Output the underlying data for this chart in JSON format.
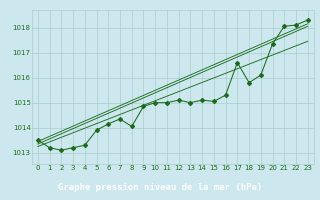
{
  "xlabel": "Graphe pression niveau de la mer (hPa)",
  "bg_color": "#cce8ee",
  "grid_color": "#aacccc",
  "line_color": "#1a6b1a",
  "text_color": "#1a6b1a",
  "xlabel_bg": "#2a6b4a",
  "xlabel_fg": "#ffffff",
  "x_values": [
    0,
    1,
    2,
    3,
    4,
    5,
    6,
    7,
    8,
    9,
    10,
    11,
    12,
    13,
    14,
    15,
    16,
    17,
    18,
    19,
    20,
    21,
    22,
    23
  ],
  "y_measured": [
    1013.5,
    1013.2,
    1013.1,
    1013.2,
    1013.3,
    1013.9,
    1014.15,
    1014.35,
    1014.05,
    1014.85,
    1015.0,
    1015.0,
    1015.1,
    1015.0,
    1015.1,
    1015.05,
    1015.3,
    1016.6,
    1015.8,
    1016.1,
    1017.35,
    1018.05,
    1018.1,
    1018.3
  ],
  "trend_lines": [
    {
      "x0": 0,
      "y0": 1013.35,
      "x1": 23,
      "y1": 1018.05
    },
    {
      "x0": 0,
      "y0": 1013.45,
      "x1": 23,
      "y1": 1018.15
    },
    {
      "x0": 0,
      "y0": 1013.25,
      "x1": 23,
      "y1": 1017.45
    }
  ],
  "ylim": [
    1012.55,
    1018.7
  ],
  "yticks": [
    1013,
    1014,
    1015,
    1016,
    1017,
    1018
  ],
  "xticks": [
    0,
    1,
    2,
    3,
    4,
    5,
    6,
    7,
    8,
    9,
    10,
    11,
    12,
    13,
    14,
    15,
    16,
    17,
    18,
    19,
    20,
    21,
    22,
    23
  ],
  "tick_fontsize": 5.0,
  "xlabel_fontsize": 6.5,
  "marker": "D",
  "marker_size": 2.0,
  "linewidth": 0.75
}
